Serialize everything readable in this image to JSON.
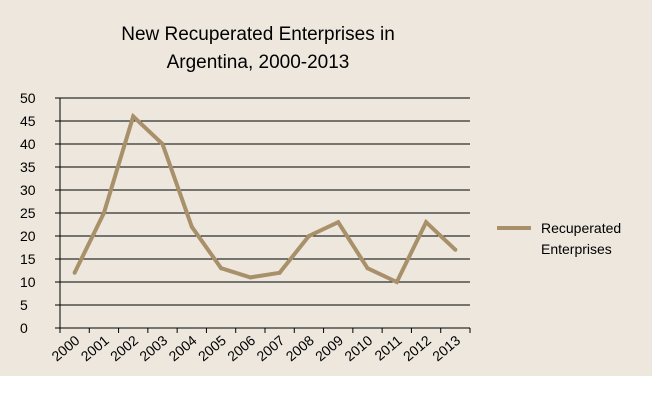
{
  "chart_data": {
    "type": "line",
    "title_lines": [
      "New Recuperated Enterprises in",
      "Argentina, 2000-2013"
    ],
    "x": [
      "2000",
      "2001",
      "2002",
      "2003",
      "2004",
      "2005",
      "2006",
      "2007",
      "2008",
      "2009",
      "2010",
      "2011",
      "2012",
      "2013"
    ],
    "series": [
      {
        "name": "Recuperated Enterprises",
        "name_lines": [
          "Recuperated",
          "Enterprises"
        ],
        "values": [
          12,
          25,
          46,
          40,
          22,
          13,
          11,
          12,
          20,
          23,
          13,
          10,
          23,
          17
        ],
        "color": "#a8916a"
      }
    ],
    "ylim": [
      0,
      50
    ],
    "yticks": [
      0,
      5,
      10,
      15,
      20,
      25,
      30,
      35,
      40,
      45,
      50
    ],
    "grid": true,
    "legend_position": "right",
    "xlabel": "",
    "ylabel": "",
    "background_color": "#ede7dd"
  }
}
